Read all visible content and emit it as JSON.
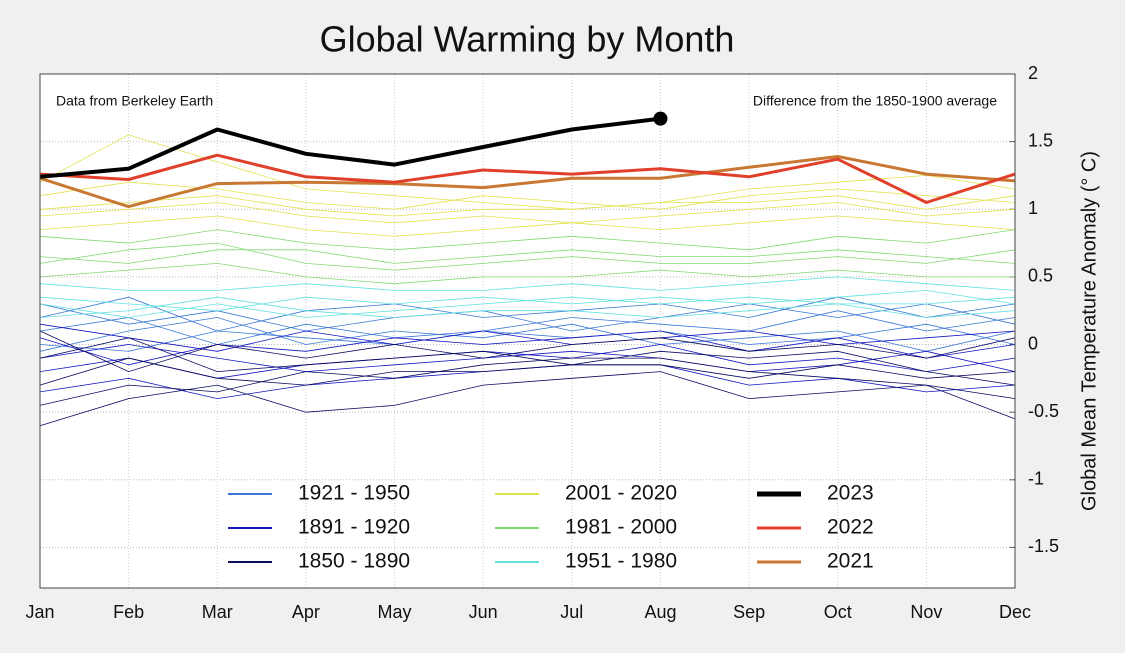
{
  "chart_data": {
    "type": "line",
    "title": "Global Warming by Month",
    "y_label": "Global Mean Temperature Anomaly (° C)",
    "annotations": [
      "Data from Berkeley Earth",
      "Difference from the 1850-1900 average"
    ],
    "categories": [
      "Jan",
      "Feb",
      "Mar",
      "Apr",
      "May",
      "Jun",
      "Jul",
      "Aug",
      "Sep",
      "Oct",
      "Nov",
      "Dec"
    ],
    "ylim": [
      -1.8,
      2
    ],
    "yticks": [
      2,
      1.5,
      1,
      0.5,
      0,
      -0.5,
      -1,
      -1.5
    ],
    "grid": true,
    "series": [
      {
        "name": "1921 - 1950",
        "color": "#3a78d6",
        "values": [
          [
            0.1,
            0.2,
            0.0,
            0.15,
            0.05,
            0.1,
            0.2,
            0.15,
            0.1,
            0.25,
            0.1,
            0.2
          ],
          [
            0.3,
            0.15,
            0.25,
            0.1,
            0.2,
            0.25,
            0.1,
            0.2,
            0.3,
            0.2,
            0.3,
            0.15
          ],
          [
            -0.05,
            0.1,
            0.2,
            0.0,
            0.1,
            0.05,
            0.15,
            0.0,
            0.05,
            0.1,
            -0.05,
            0.1
          ],
          [
            0.2,
            0.35,
            0.1,
            0.25,
            0.3,
            0.2,
            0.25,
            0.3,
            0.2,
            0.35,
            0.2,
            0.3
          ],
          [
            0.0,
            -0.05,
            0.1,
            0.05,
            0.0,
            0.1,
            0.05,
            0.1,
            0.0,
            0.05,
            0.15,
            0.0
          ]
        ]
      },
      {
        "name": "1891 - 1920",
        "color": "#1414c0",
        "values": [
          [
            -0.2,
            -0.1,
            -0.25,
            -0.15,
            -0.1,
            -0.05,
            -0.1,
            0.0,
            -0.15,
            -0.1,
            -0.2,
            -0.1
          ],
          [
            0.05,
            -0.15,
            0.0,
            -0.05,
            0.05,
            0.0,
            0.05,
            0.1,
            -0.05,
            0.05,
            -0.1,
            0.0
          ],
          [
            -0.35,
            -0.25,
            -0.4,
            -0.3,
            -0.25,
            -0.2,
            -0.15,
            -0.15,
            -0.3,
            -0.25,
            -0.35,
            -0.3
          ],
          [
            0.15,
            0.05,
            -0.05,
            0.1,
            0.0,
            0.1,
            0.0,
            0.05,
            0.1,
            0.0,
            0.05,
            0.1
          ],
          [
            -0.1,
            0.0,
            -0.1,
            -0.2,
            -0.15,
            -0.1,
            -0.05,
            -0.1,
            -0.2,
            -0.15,
            -0.05,
            -0.2
          ]
        ]
      },
      {
        "name": "1850 - 1890",
        "color": "#0a0a5e",
        "values": [
          [
            -0.45,
            -0.3,
            -0.35,
            -0.2,
            -0.25,
            -0.15,
            -0.1,
            -0.1,
            -0.2,
            -0.25,
            -0.3,
            -0.4
          ],
          [
            -0.1,
            0.05,
            -0.2,
            -0.15,
            -0.1,
            -0.05,
            -0.15,
            -0.05,
            -0.1,
            -0.05,
            -0.2,
            -0.3
          ],
          [
            -0.6,
            -0.4,
            -0.3,
            -0.5,
            -0.45,
            -0.3,
            -0.25,
            -0.2,
            -0.4,
            -0.35,
            -0.3,
            -0.55
          ],
          [
            0.1,
            -0.2,
            0.0,
            -0.1,
            0.0,
            -0.1,
            0.0,
            0.05,
            -0.05,
            0.0,
            -0.1,
            0.05
          ],
          [
            -0.3,
            -0.1,
            -0.25,
            -0.3,
            -0.2,
            -0.2,
            -0.15,
            -0.15,
            -0.25,
            -0.15,
            -0.25,
            -0.2
          ]
        ]
      },
      {
        "name": "2001 - 2020",
        "color": "#e2e24e",
        "values": [
          [
            0.95,
            1.0,
            1.05,
            0.95,
            0.9,
            0.95,
            0.9,
            0.95,
            1.0,
            1.05,
            0.95,
            1.0
          ],
          [
            1.1,
            1.2,
            1.15,
            1.05,
            1.0,
            1.1,
            1.05,
            1.0,
            1.1,
            1.15,
            1.1,
            1.05
          ],
          [
            0.85,
            0.9,
            0.95,
            0.85,
            0.8,
            0.85,
            0.9,
            0.85,
            0.9,
            0.95,
            0.9,
            0.85
          ],
          [
            1.2,
            1.55,
            1.35,
            1.15,
            1.1,
            1.05,
            1.0,
            1.05,
            1.15,
            1.2,
            1.25,
            1.15
          ],
          [
            1.0,
            1.05,
            1.1,
            1.0,
            0.95,
            1.0,
            1.0,
            1.05,
            1.05,
            1.1,
            1.0,
            1.1
          ]
        ]
      },
      {
        "name": "1981 - 2000",
        "color": "#82d872",
        "values": [
          [
            0.6,
            0.7,
            0.75,
            0.6,
            0.55,
            0.6,
            0.65,
            0.6,
            0.6,
            0.65,
            0.6,
            0.7
          ],
          [
            0.5,
            0.55,
            0.6,
            0.5,
            0.45,
            0.5,
            0.5,
            0.55,
            0.5,
            0.55,
            0.5,
            0.5
          ],
          [
            0.8,
            0.75,
            0.85,
            0.75,
            0.7,
            0.75,
            0.8,
            0.75,
            0.7,
            0.8,
            0.75,
            0.85
          ],
          [
            0.65,
            0.6,
            0.7,
            0.7,
            0.6,
            0.65,
            0.7,
            0.65,
            0.65,
            0.7,
            0.65,
            0.6
          ]
        ]
      },
      {
        "name": "1951 - 1980",
        "color": "#62e0e0",
        "values": [
          [
            0.35,
            0.3,
            0.25,
            0.35,
            0.3,
            0.35,
            0.3,
            0.35,
            0.3,
            0.35,
            0.4,
            0.3
          ],
          [
            0.2,
            0.25,
            0.35,
            0.25,
            0.2,
            0.25,
            0.25,
            0.2,
            0.25,
            0.3,
            0.2,
            0.25
          ],
          [
            0.45,
            0.4,
            0.4,
            0.45,
            0.4,
            0.4,
            0.45,
            0.4,
            0.45,
            0.5,
            0.45,
            0.4
          ],
          [
            0.3,
            0.2,
            0.3,
            0.2,
            0.25,
            0.3,
            0.35,
            0.3,
            0.35,
            0.3,
            0.3,
            0.35
          ]
        ]
      },
      {
        "name": "2023",
        "color": "#000000",
        "values": [
          1.24,
          1.3,
          1.59,
          1.41,
          1.33,
          1.46,
          1.59,
          1.67,
          null,
          null,
          null,
          null
        ]
      },
      {
        "name": "2022",
        "color": "#e0402a",
        "values": [
          1.26,
          1.22,
          1.4,
          1.24,
          1.2,
          1.29,
          1.26,
          1.3,
          1.24,
          1.37,
          1.05,
          1.26
        ]
      },
      {
        "name": "2021",
        "color": "#c87832",
        "values": [
          1.23,
          1.02,
          1.19,
          1.2,
          1.19,
          1.16,
          1.23,
          1.23,
          1.31,
          1.39,
          1.26,
          1.21
        ]
      }
    ]
  }
}
